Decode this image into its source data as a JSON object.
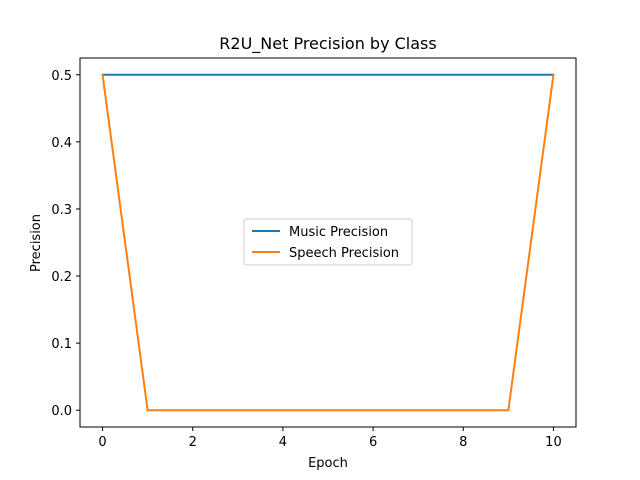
{
  "chart_data": {
    "type": "line",
    "title": "R2U_Net Precision by Class",
    "xlabel": "Epoch",
    "ylabel": "Precision",
    "xlim": [
      -0.5,
      10.5
    ],
    "ylim": [
      -0.025,
      0.525
    ],
    "xticks": [
      0,
      2,
      4,
      6,
      8,
      10
    ],
    "xtick_labels": [
      "0",
      "2",
      "4",
      "6",
      "8",
      "10"
    ],
    "yticks": [
      0.0,
      0.1,
      0.2,
      0.3,
      0.4,
      0.5
    ],
    "ytick_labels": [
      "0.0",
      "0.1",
      "0.2",
      "0.3",
      "0.4",
      "0.5"
    ],
    "grid": false,
    "legend_position": "center",
    "x": [
      0,
      1,
      2,
      3,
      4,
      5,
      6,
      7,
      8,
      9,
      10
    ],
    "series": [
      {
        "name": "Music Precision",
        "color": "#1f77b4",
        "values": [
          0.5,
          0.5,
          0.5,
          0.5,
          0.5,
          0.5,
          0.5,
          0.5,
          0.5,
          0.5,
          0.5
        ]
      },
      {
        "name": "Speech Precision",
        "color": "#ff7f0e",
        "values": [
          0.5,
          0.0,
          0.0,
          0.0,
          0.0,
          0.0,
          0.0,
          0.0,
          0.0,
          0.0,
          0.5
        ]
      }
    ]
  }
}
